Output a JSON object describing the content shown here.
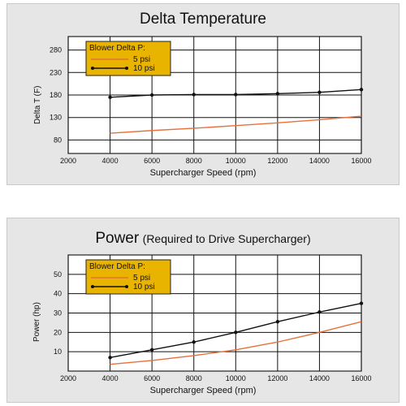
{
  "chart_data": [
    {
      "type": "line",
      "title": "Delta Temperature",
      "subtitle": "",
      "xlabel": "Supercharger Speed (rpm)",
      "ylabel": "Delta T (F)",
      "xlim": [
        2000,
        16000
      ],
      "ylim": [
        50,
        310
      ],
      "x_ticks": [
        2000,
        4000,
        6000,
        8000,
        10000,
        12000,
        14000,
        16000
      ],
      "y_ticks": [
        80,
        130,
        180,
        230,
        280
      ],
      "grid": true,
      "legend": {
        "title": "Blower Delta P:",
        "position": "top-left",
        "entries": [
          "5 psi",
          "10 psi"
        ]
      },
      "series": [
        {
          "name": "5 psi",
          "color": "#e8703a",
          "markers": false,
          "x": [
            4000,
            6000,
            8000,
            10000,
            12000,
            14000,
            16000
          ],
          "y": [
            95,
            101,
            106,
            112,
            118,
            125,
            133
          ]
        },
        {
          "name": "10 psi",
          "color": "#111111",
          "markers": true,
          "x": [
            4000,
            6000,
            8000,
            10000,
            12000,
            14000,
            16000
          ],
          "y": [
            175,
            180,
            181,
            181,
            183,
            186,
            192
          ]
        }
      ]
    },
    {
      "type": "line",
      "title": "Power",
      "subtitle": "(Required to Drive Supercharger)",
      "xlabel": "Supercharger Speed (rpm)",
      "ylabel": "Power (hp)",
      "xlim": [
        2000,
        16000
      ],
      "ylim": [
        0,
        60
      ],
      "x_ticks": [
        2000,
        4000,
        6000,
        8000,
        10000,
        12000,
        14000,
        16000
      ],
      "y_ticks": [
        10,
        20,
        30,
        40,
        50
      ],
      "grid": true,
      "legend": {
        "title": "Blower Delta P:",
        "position": "top-left",
        "entries": [
          "5 psi",
          "10 psi"
        ]
      },
      "series": [
        {
          "name": "5 psi",
          "color": "#e8703a",
          "markers": false,
          "x": [
            4000,
            6000,
            8000,
            10000,
            12000,
            14000,
            16000
          ],
          "y": [
            3.5,
            5.5,
            8,
            11,
            15,
            20,
            25.5
          ]
        },
        {
          "name": "10 psi",
          "color": "#111111",
          "markers": true,
          "x": [
            4000,
            6000,
            8000,
            10000,
            12000,
            14000,
            16000
          ],
          "y": [
            7,
            11,
            15,
            20,
            25.5,
            30.5,
            35
          ]
        }
      ]
    }
  ]
}
